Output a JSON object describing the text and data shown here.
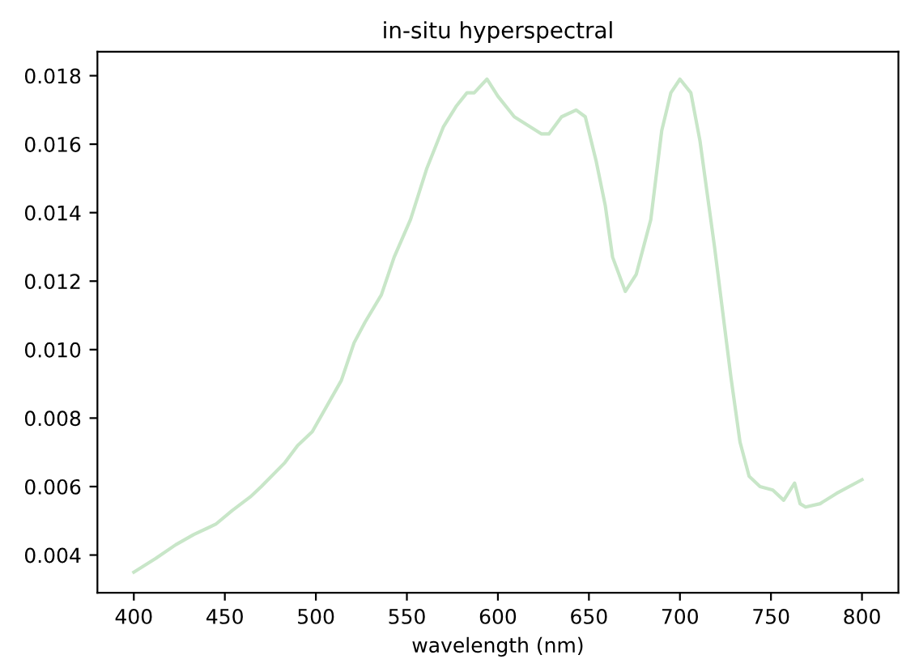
{
  "chart_data": {
    "type": "line",
    "title": "in-situ hyperspectral",
    "xlabel": "wavelength (nm)",
    "x": [
      400,
      412,
      423,
      433,
      445,
      454,
      464,
      470,
      483,
      490,
      498,
      514,
      521,
      527,
      536,
      543,
      552,
      561,
      570,
      577,
      583,
      587,
      594,
      600,
      609,
      624,
      628,
      635,
      643,
      648,
      654,
      659,
      663,
      670,
      676,
      684,
      690,
      695,
      700,
      706,
      711,
      719,
      728,
      733,
      738,
      744,
      751,
      757,
      763,
      766,
      769,
      777,
      786,
      800
    ],
    "series": [
      {
        "color": "#c8e6c8",
        "values": [
          0.0035,
          0.0039,
          0.0043,
          0.0046,
          0.0049,
          0.0053,
          0.0057,
          0.006,
          0.0067,
          0.0072,
          0.0076,
          0.0091,
          0.0102,
          0.0108,
          0.0116,
          0.0127,
          0.0138,
          0.0153,
          0.0165,
          0.0171,
          0.0175,
          0.0175,
          0.0179,
          0.0174,
          0.0168,
          0.0163,
          0.0163,
          0.0168,
          0.017,
          0.0168,
          0.0155,
          0.0142,
          0.0127,
          0.0117,
          0.0122,
          0.0138,
          0.0164,
          0.0175,
          0.0179,
          0.0175,
          0.0161,
          0.013,
          0.0092,
          0.0073,
          0.0063,
          0.006,
          0.0059,
          0.0056,
          0.0061,
          0.0055,
          0.0054,
          0.0055,
          0.0058,
          0.0062
        ]
      }
    ],
    "xlim": [
      380,
      820
    ],
    "ylim": [
      0.0029,
      0.0187
    ],
    "xticks": [
      400,
      450,
      500,
      550,
      600,
      650,
      700,
      750,
      800
    ],
    "yticks": [
      {
        "value": 0.004,
        "label": "0.004"
      },
      {
        "value": 0.006,
        "label": "0.006"
      },
      {
        "value": 0.008,
        "label": "0.008"
      },
      {
        "value": 0.01,
        "label": "0.010"
      },
      {
        "value": 0.012,
        "label": "0.012"
      },
      {
        "value": 0.014,
        "label": "0.014"
      },
      {
        "value": 0.016,
        "label": "0.016"
      },
      {
        "value": 0.018,
        "label": "0.018"
      }
    ],
    "grid": false,
    "legend": false
  }
}
